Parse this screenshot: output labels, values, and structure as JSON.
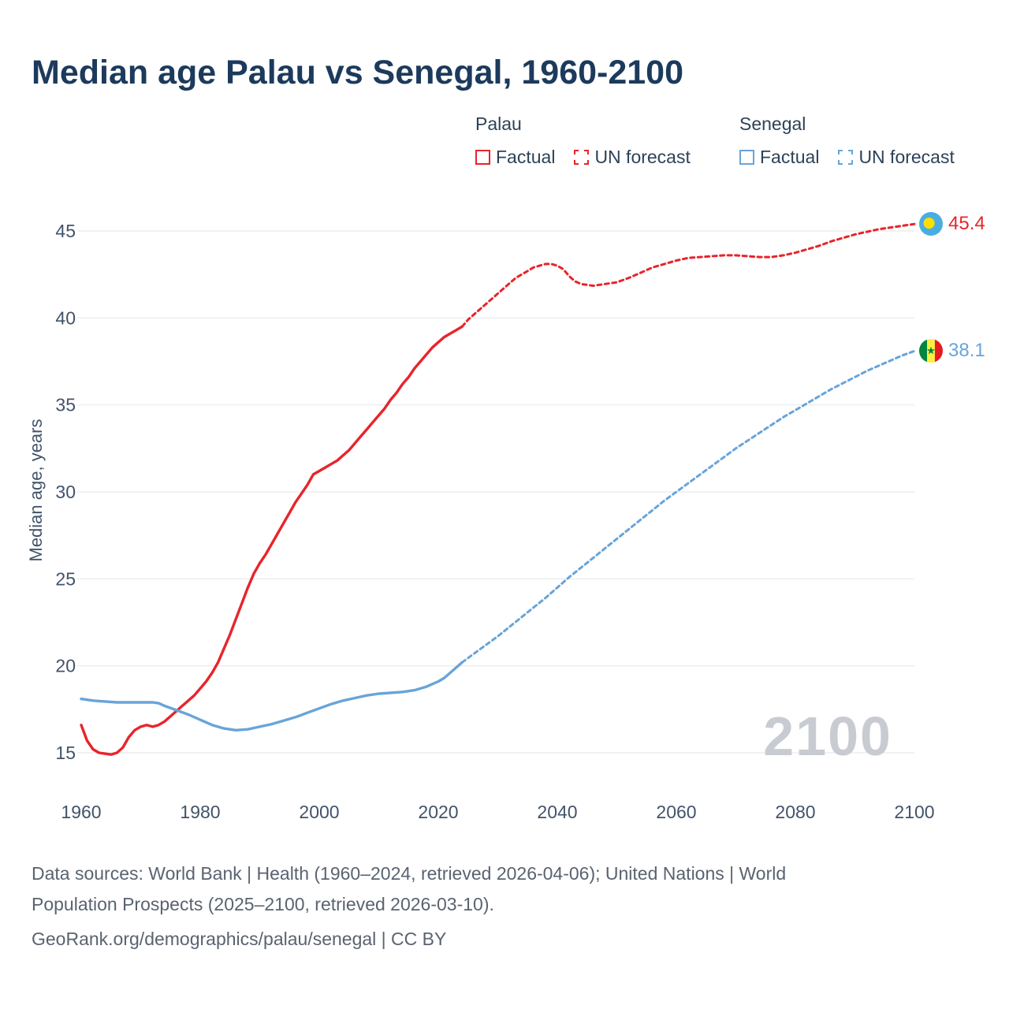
{
  "colors": {
    "palau": "#e8242b",
    "senegal": "#68a4d9",
    "title_text": "#1c3a5c",
    "axis_text": "#42536a",
    "watermark_text": "#c8ccd2",
    "gridline": "#e8e9eb"
  },
  "icons": {
    "palau_endpoint": "palau-flag-icon",
    "senegal_endpoint": "senegal-flag-icon"
  },
  "legend": {
    "groups": [
      {
        "name": "Palau",
        "color_key": "palau",
        "items": [
          {
            "label": "Factual",
            "style": "solid"
          },
          {
            "label": "UN forecast",
            "style": "dashed"
          }
        ]
      },
      {
        "name": "Senegal",
        "color_key": "senegal",
        "items": [
          {
            "label": "Factual",
            "style": "solid"
          },
          {
            "label": "UN forecast",
            "style": "dashed"
          }
        ]
      }
    ]
  },
  "chart_data": {
    "type": "line",
    "title": "Median age Palau vs Senegal, 1960-2100",
    "xlabel": "",
    "ylabel": "Median age, years",
    "xlim": [
      1960,
      2100
    ],
    "ylim": [
      15,
      45
    ],
    "xticks": [
      1960,
      1980,
      2000,
      2020,
      2040,
      2060,
      2080,
      2100
    ],
    "yticks": [
      15,
      20,
      25,
      30,
      35,
      40,
      45
    ],
    "grid": "horizontal",
    "legend_position": "top-right",
    "watermark": "2100",
    "series": [
      {
        "name": "Palau — Factual",
        "color_key": "palau",
        "style": "solid",
        "points": [
          [
            1960,
            16.6
          ],
          [
            1961,
            15.7
          ],
          [
            1962,
            15.2
          ],
          [
            1963,
            15.0
          ],
          [
            1964,
            14.95
          ],
          [
            1965,
            14.9
          ],
          [
            1966,
            15.0
          ],
          [
            1967,
            15.3
          ],
          [
            1968,
            15.9
          ],
          [
            1969,
            16.3
          ],
          [
            1970,
            16.5
          ],
          [
            1971,
            16.6
          ],
          [
            1972,
            16.5
          ],
          [
            1973,
            16.6
          ],
          [
            1974,
            16.8
          ],
          [
            1975,
            17.1
          ],
          [
            1976,
            17.4
          ],
          [
            1977,
            17.7
          ],
          [
            1978,
            18.0
          ],
          [
            1979,
            18.3
          ],
          [
            1980,
            18.7
          ],
          [
            1981,
            19.1
          ],
          [
            1982,
            19.6
          ],
          [
            1983,
            20.2
          ],
          [
            1984,
            21.0
          ],
          [
            1985,
            21.8
          ],
          [
            1986,
            22.7
          ],
          [
            1987,
            23.6
          ],
          [
            1988,
            24.5
          ],
          [
            1989,
            25.3
          ],
          [
            1990,
            25.9
          ],
          [
            1991,
            26.4
          ],
          [
            1992,
            27.0
          ],
          [
            1993,
            27.6
          ],
          [
            1994,
            28.2
          ],
          [
            1995,
            28.8
          ],
          [
            1996,
            29.4
          ],
          [
            1997,
            29.9
          ],
          [
            1998,
            30.4
          ],
          [
            1999,
            31.0
          ],
          [
            2000,
            31.2
          ],
          [
            2001,
            31.4
          ],
          [
            2002,
            31.6
          ],
          [
            2003,
            31.8
          ],
          [
            2004,
            32.1
          ],
          [
            2005,
            32.4
          ],
          [
            2006,
            32.8
          ],
          [
            2007,
            33.2
          ],
          [
            2008,
            33.6
          ],
          [
            2009,
            34.0
          ],
          [
            2010,
            34.4
          ],
          [
            2011,
            34.8
          ],
          [
            2012,
            35.3
          ],
          [
            2013,
            35.7
          ],
          [
            2014,
            36.2
          ],
          [
            2015,
            36.6
          ],
          [
            2016,
            37.1
          ],
          [
            2017,
            37.5
          ],
          [
            2018,
            37.9
          ],
          [
            2019,
            38.3
          ],
          [
            2020,
            38.6
          ],
          [
            2021,
            38.9
          ],
          [
            2022,
            39.1
          ],
          [
            2023,
            39.3
          ],
          [
            2024,
            39.5
          ]
        ]
      },
      {
        "name": "Palau — UN forecast",
        "color_key": "palau",
        "style": "dashed",
        "points": [
          [
            2024,
            39.5
          ],
          [
            2025,
            39.9
          ],
          [
            2026,
            40.2
          ],
          [
            2027,
            40.5
          ],
          [
            2028,
            40.8
          ],
          [
            2029,
            41.1
          ],
          [
            2030,
            41.4
          ],
          [
            2031,
            41.7
          ],
          [
            2032,
            42.0
          ],
          [
            2033,
            42.3
          ],
          [
            2034,
            42.5
          ],
          [
            2035,
            42.7
          ],
          [
            2036,
            42.9
          ],
          [
            2037,
            43.0
          ],
          [
            2038,
            43.1
          ],
          [
            2039,
            43.1
          ],
          [
            2040,
            43.0
          ],
          [
            2041,
            42.8
          ],
          [
            2042,
            42.4
          ],
          [
            2043,
            42.1
          ],
          [
            2044,
            41.95
          ],
          [
            2045,
            41.9
          ],
          [
            2046,
            41.85
          ],
          [
            2047,
            41.9
          ],
          [
            2048,
            41.95
          ],
          [
            2050,
            42.05
          ],
          [
            2052,
            42.3
          ],
          [
            2054,
            42.6
          ],
          [
            2056,
            42.9
          ],
          [
            2058,
            43.1
          ],
          [
            2060,
            43.3
          ],
          [
            2062,
            43.45
          ],
          [
            2064,
            43.5
          ],
          [
            2066,
            43.55
          ],
          [
            2068,
            43.6
          ],
          [
            2070,
            43.6
          ],
          [
            2072,
            43.55
          ],
          [
            2074,
            43.5
          ],
          [
            2076,
            43.5
          ],
          [
            2078,
            43.6
          ],
          [
            2080,
            43.75
          ],
          [
            2082,
            43.95
          ],
          [
            2084,
            44.15
          ],
          [
            2086,
            44.4
          ],
          [
            2088,
            44.6
          ],
          [
            2090,
            44.8
          ],
          [
            2092,
            44.95
          ],
          [
            2094,
            45.1
          ],
          [
            2096,
            45.2
          ],
          [
            2098,
            45.3
          ],
          [
            2100,
            45.4
          ]
        ]
      },
      {
        "name": "Senegal — Factual",
        "color_key": "senegal",
        "style": "solid",
        "points": [
          [
            1960,
            18.1
          ],
          [
            1962,
            18.0
          ],
          [
            1964,
            17.95
          ],
          [
            1966,
            17.9
          ],
          [
            1968,
            17.9
          ],
          [
            1970,
            17.9
          ],
          [
            1972,
            17.9
          ],
          [
            1973,
            17.85
          ],
          [
            1974,
            17.7
          ],
          [
            1976,
            17.45
          ],
          [
            1978,
            17.2
          ],
          [
            1980,
            16.9
          ],
          [
            1982,
            16.6
          ],
          [
            1984,
            16.4
          ],
          [
            1986,
            16.3
          ],
          [
            1988,
            16.35
          ],
          [
            1990,
            16.5
          ],
          [
            1992,
            16.65
          ],
          [
            1994,
            16.85
          ],
          [
            1996,
            17.05
          ],
          [
            1998,
            17.3
          ],
          [
            2000,
            17.55
          ],
          [
            2002,
            17.8
          ],
          [
            2004,
            18.0
          ],
          [
            2006,
            18.15
          ],
          [
            2008,
            18.3
          ],
          [
            2010,
            18.4
          ],
          [
            2012,
            18.45
          ],
          [
            2014,
            18.5
          ],
          [
            2016,
            18.6
          ],
          [
            2018,
            18.8
          ],
          [
            2020,
            19.1
          ],
          [
            2021,
            19.3
          ],
          [
            2022,
            19.6
          ],
          [
            2023,
            19.9
          ],
          [
            2024,
            20.2
          ]
        ]
      },
      {
        "name": "Senegal — UN forecast",
        "color_key": "senegal",
        "style": "dashed",
        "points": [
          [
            2024,
            20.2
          ],
          [
            2025,
            20.45
          ],
          [
            2026,
            20.7
          ],
          [
            2028,
            21.2
          ],
          [
            2030,
            21.7
          ],
          [
            2032,
            22.25
          ],
          [
            2034,
            22.8
          ],
          [
            2036,
            23.35
          ],
          [
            2038,
            23.9
          ],
          [
            2040,
            24.5
          ],
          [
            2042,
            25.1
          ],
          [
            2044,
            25.65
          ],
          [
            2046,
            26.2
          ],
          [
            2048,
            26.75
          ],
          [
            2050,
            27.3
          ],
          [
            2052,
            27.85
          ],
          [
            2054,
            28.4
          ],
          [
            2056,
            28.95
          ],
          [
            2058,
            29.5
          ],
          [
            2060,
            30.0
          ],
          [
            2062,
            30.5
          ],
          [
            2064,
            31.0
          ],
          [
            2066,
            31.5
          ],
          [
            2068,
            32.0
          ],
          [
            2070,
            32.5
          ],
          [
            2072,
            32.95
          ],
          [
            2074,
            33.4
          ],
          [
            2076,
            33.85
          ],
          [
            2078,
            34.3
          ],
          [
            2080,
            34.7
          ],
          [
            2082,
            35.1
          ],
          [
            2084,
            35.5
          ],
          [
            2086,
            35.9
          ],
          [
            2088,
            36.25
          ],
          [
            2090,
            36.6
          ],
          [
            2092,
            36.95
          ],
          [
            2094,
            37.25
          ],
          [
            2096,
            37.55
          ],
          [
            2098,
            37.85
          ],
          [
            2100,
            38.1
          ]
        ]
      }
    ],
    "end_labels": {
      "palau": {
        "value": "45.4"
      },
      "senegal": {
        "value": "38.1"
      }
    }
  },
  "footer": {
    "line1": "Data sources: World Bank | Health (1960–2024, retrieved 2026-04-06); United Nations | World",
    "line2": "Population Prospects (2025–2100, retrieved 2026-03-10).",
    "line3": "GeoRank.org/demographics/palau/senegal | CC BY"
  }
}
